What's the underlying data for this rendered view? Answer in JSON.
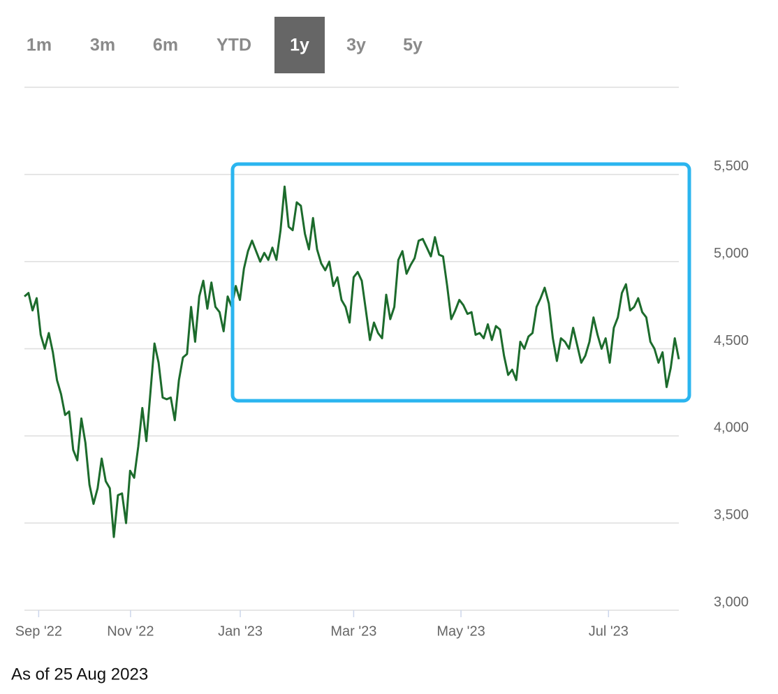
{
  "range_buttons": [
    "1m",
    "3m",
    "6m",
    "YTD",
    "1y",
    "3y",
    "5y"
  ],
  "active_button": 4,
  "chart_data": {
    "type": "line",
    "color": "#1c6b2c",
    "values": [
      4800,
      4820,
      4720,
      4790,
      4580,
      4500,
      4590,
      4480,
      4320,
      4240,
      4120,
      4140,
      3920,
      3860,
      4100,
      3960,
      3720,
      3610,
      3700,
      3870,
      3740,
      3700,
      3420,
      3660,
      3670,
      3500,
      3800,
      3760,
      3940,
      4160,
      3970,
      4250,
      4530,
      4420,
      4220,
      4210,
      4220,
      4090,
      4320,
      4450,
      4470,
      4740,
      4540,
      4800,
      4890,
      4730,
      4880,
      4740,
      4710,
      4600,
      4800,
      4740,
      4860,
      4780,
      4960,
      5060,
      5120,
      5060,
      5000,
      5050,
      5010,
      5080,
      5010,
      5180,
      5430,
      5200,
      5180,
      5340,
      5320,
      5160,
      5070,
      5250,
      5070,
      4990,
      4950,
      5000,
      4860,
      4910,
      4780,
      4740,
      4650,
      4910,
      4940,
      4890,
      4720,
      4550,
      4650,
      4590,
      4560,
      4810,
      4670,
      4740,
      5010,
      5060,
      4930,
      4980,
      5020,
      5120,
      5130,
      5080,
      5030,
      5140,
      5040,
      5030,
      4860,
      4670,
      4720,
      4780,
      4750,
      4700,
      4710,
      4580,
      4590,
      4560,
      4640,
      4550,
      4630,
      4610,
      4460,
      4350,
      4380,
      4320,
      4540,
      4500,
      4570,
      4590,
      4740,
      4790,
      4850,
      4760,
      4560,
      4430,
      4560,
      4540,
      4500,
      4620,
      4520,
      4420,
      4460,
      4540,
      4680,
      4580,
      4500,
      4560,
      4420,
      4620,
      4680,
      4820,
      4870,
      4720,
      4740,
      4790,
      4710,
      4680,
      4540,
      4500,
      4420,
      4480,
      4280,
      4390,
      4560,
      4440
    ],
    "xlim": [
      0,
      161
    ],
    "xticks": [
      {
        "value": 3.5,
        "label": "Sep '22"
      },
      {
        "value": 26.1,
        "label": "Nov '22"
      },
      {
        "value": 53.1,
        "label": "Jan '23"
      },
      {
        "value": 81,
        "label": "Mar '23"
      },
      {
        "value": 107.4,
        "label": "May '23"
      },
      {
        "value": 143.7,
        "label": "Jul '23"
      }
    ],
    "ylim": [
      3000,
      6000
    ],
    "yticks": [
      {
        "value": 3000,
        "label": "3,000"
      },
      {
        "value": 3500,
        "label": "3,500"
      },
      {
        "value": 4000,
        "label": "4,000"
      },
      {
        "value": 4500,
        "label": "4,500"
      },
      {
        "value": 5000,
        "label": "5,000"
      },
      {
        "value": 5500,
        "label": "5,500"
      }
    ],
    "grid": true
  },
  "footnote": "As of 25 Aug 2023"
}
